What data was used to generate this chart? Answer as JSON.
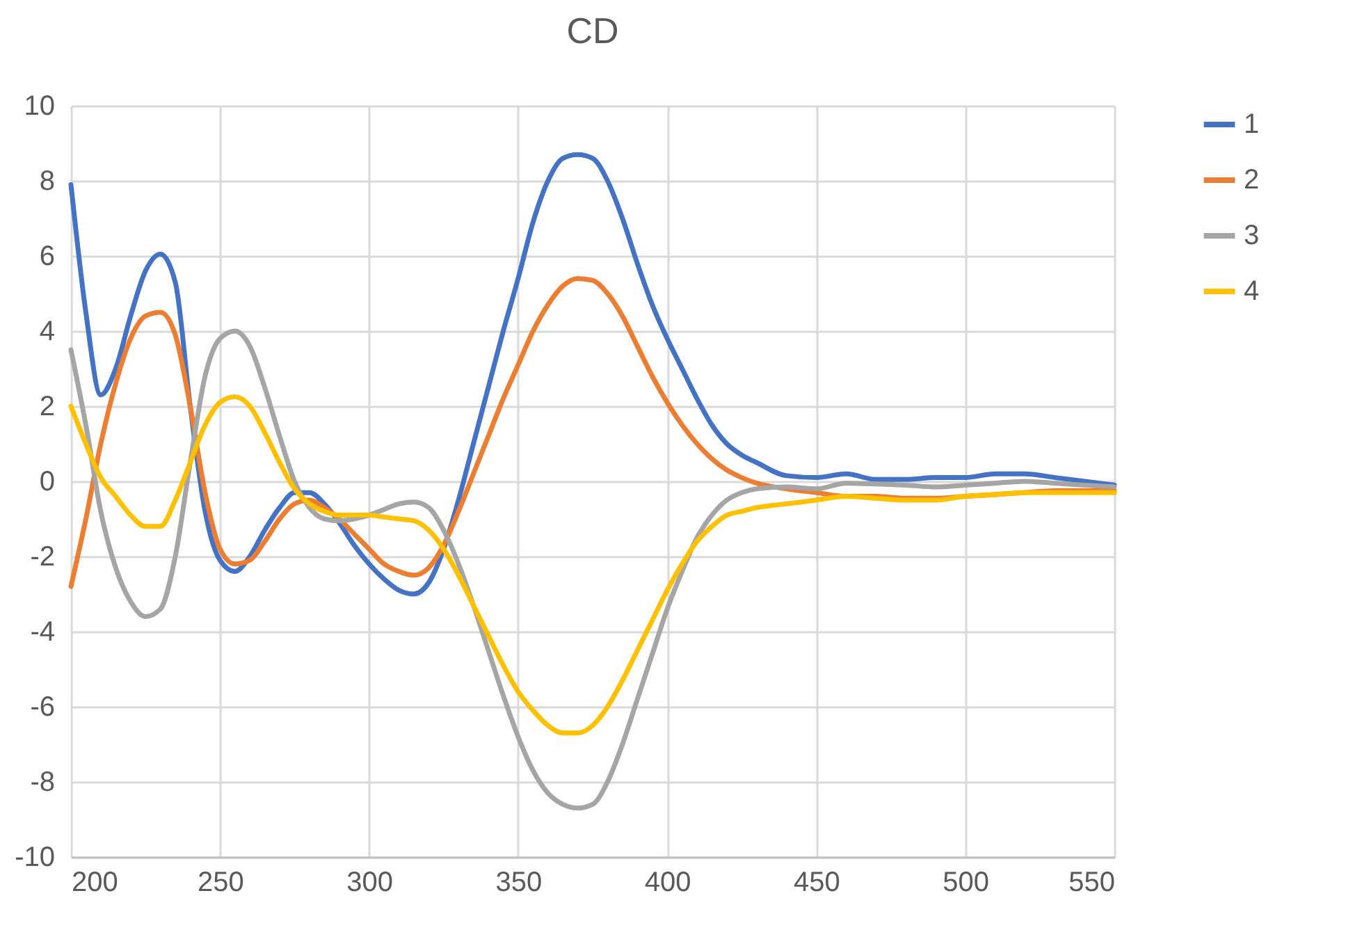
{
  "chart_data": {
    "type": "line",
    "title": "CD",
    "x": [
      200,
      205,
      210,
      215,
      220,
      225,
      230,
      235,
      240,
      245,
      250,
      255,
      260,
      265,
      270,
      275,
      280,
      285,
      290,
      295,
      300,
      305,
      310,
      315,
      320,
      325,
      330,
      335,
      340,
      345,
      350,
      355,
      360,
      365,
      370,
      375,
      380,
      385,
      390,
      395,
      400,
      405,
      410,
      415,
      420,
      425,
      430,
      440,
      450,
      460,
      470,
      480,
      490,
      500,
      510,
      520,
      530,
      540,
      550
    ],
    "series": [
      {
        "name": "1",
        "color": "#4472c4",
        "values": [
          7.9,
          4.5,
          2.3,
          3.0,
          4.4,
          5.6,
          6.05,
          5.3,
          2.0,
          -0.8,
          -2.1,
          -2.4,
          -2.0,
          -1.3,
          -0.7,
          -0.3,
          -0.3,
          -0.6,
          -1.1,
          -1.7,
          -2.2,
          -2.6,
          -2.9,
          -3.0,
          -2.7,
          -1.8,
          -0.5,
          1.0,
          2.5,
          4.0,
          5.4,
          6.9,
          8.0,
          8.6,
          8.7,
          8.6,
          8.0,
          7.0,
          5.8,
          4.7,
          3.8,
          3.0,
          2.2,
          1.5,
          1.0,
          0.7,
          0.5,
          0.15,
          0.1,
          0.2,
          0.05,
          0.05,
          0.1,
          0.1,
          0.2,
          0.2,
          0.1,
          0.0,
          -0.1
        ]
      },
      {
        "name": "2",
        "color": "#ed7d31",
        "values": [
          -2.8,
          -1.0,
          1.0,
          2.6,
          3.8,
          4.4,
          4.5,
          3.9,
          2.0,
          -0.3,
          -1.8,
          -2.2,
          -2.1,
          -1.6,
          -1.0,
          -0.6,
          -0.5,
          -0.7,
          -1.0,
          -1.4,
          -1.8,
          -2.2,
          -2.4,
          -2.5,
          -2.3,
          -1.7,
          -0.8,
          0.2,
          1.2,
          2.2,
          3.1,
          4.0,
          4.7,
          5.2,
          5.4,
          5.35,
          5.0,
          4.4,
          3.6,
          2.8,
          2.1,
          1.5,
          1.0,
          0.6,
          0.3,
          0.1,
          -0.05,
          -0.2,
          -0.3,
          -0.4,
          -0.4,
          -0.45,
          -0.45,
          -0.4,
          -0.35,
          -0.3,
          -0.25,
          -0.25,
          -0.25
        ]
      },
      {
        "name": "3",
        "color": "#a5a5a5",
        "values": [
          3.5,
          1.5,
          -0.8,
          -2.3,
          -3.2,
          -3.6,
          -3.4,
          -2.0,
          0.5,
          2.8,
          3.8,
          4.0,
          3.6,
          2.5,
          1.2,
          0.0,
          -0.7,
          -1.0,
          -1.05,
          -1.0,
          -0.9,
          -0.75,
          -0.6,
          -0.55,
          -0.7,
          -1.3,
          -2.2,
          -3.3,
          -4.5,
          -5.7,
          -6.8,
          -7.7,
          -8.3,
          -8.6,
          -8.7,
          -8.6,
          -8.0,
          -7.0,
          -5.8,
          -4.6,
          -3.4,
          -2.4,
          -1.5,
          -0.9,
          -0.5,
          -0.3,
          -0.2,
          -0.15,
          -0.2,
          -0.05,
          -0.07,
          -0.1,
          -0.15,
          -0.1,
          -0.05,
          0.0,
          -0.05,
          -0.1,
          -0.15
        ]
      },
      {
        "name": "4",
        "color": "#ffc000",
        "values": [
          2.0,
          1.0,
          0.1,
          -0.4,
          -0.9,
          -1.2,
          -1.2,
          -0.5,
          0.5,
          1.5,
          2.1,
          2.25,
          2.0,
          1.3,
          0.5,
          -0.2,
          -0.6,
          -0.8,
          -0.9,
          -0.9,
          -0.9,
          -0.95,
          -1.0,
          -1.05,
          -1.3,
          -1.8,
          -2.5,
          -3.3,
          -4.1,
          -4.9,
          -5.6,
          -6.1,
          -6.5,
          -6.7,
          -6.7,
          -6.5,
          -6.0,
          -5.3,
          -4.5,
          -3.7,
          -2.9,
          -2.2,
          -1.6,
          -1.2,
          -0.9,
          -0.8,
          -0.7,
          -0.6,
          -0.5,
          -0.4,
          -0.45,
          -0.5,
          -0.5,
          -0.4,
          -0.35,
          -0.3,
          -0.3,
          -0.3,
          -0.3
        ]
      }
    ],
    "xlim": [
      200,
      550
    ],
    "xticks": [
      200,
      250,
      300,
      350,
      400,
      450,
      500,
      550
    ],
    "ylim": [
      -10,
      10
    ],
    "yticks": [
      -10,
      -8,
      -6,
      -4,
      -2,
      0,
      2,
      4,
      6,
      8,
      10
    ],
    "grid": true,
    "legend": "right"
  }
}
